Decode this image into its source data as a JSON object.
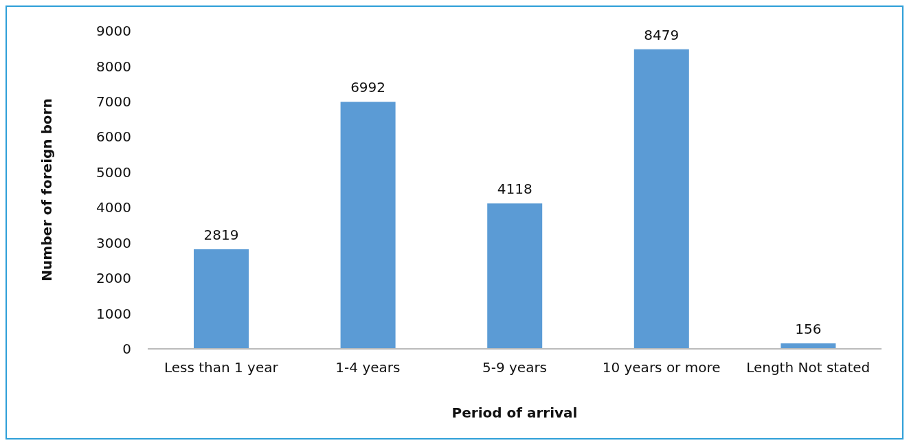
{
  "chart_data": {
    "type": "bar",
    "xlabel": "Period of arrival",
    "ylabel": "Number of foreign born",
    "categories": [
      "Less than 1 year",
      "1-4 years",
      "5-9 years",
      "10 years or more",
      "Length Not stated"
    ],
    "values": [
      2819,
      6992,
      4118,
      8479,
      156
    ],
    "color": "#5b9bd5",
    "ylim": [
      0,
      9000
    ],
    "yticks": [
      0,
      1000,
      2000,
      3000,
      4000,
      5000,
      6000,
      7000,
      8000,
      9000
    ],
    "grid": false,
    "data_labels": true,
    "legend": false
  }
}
